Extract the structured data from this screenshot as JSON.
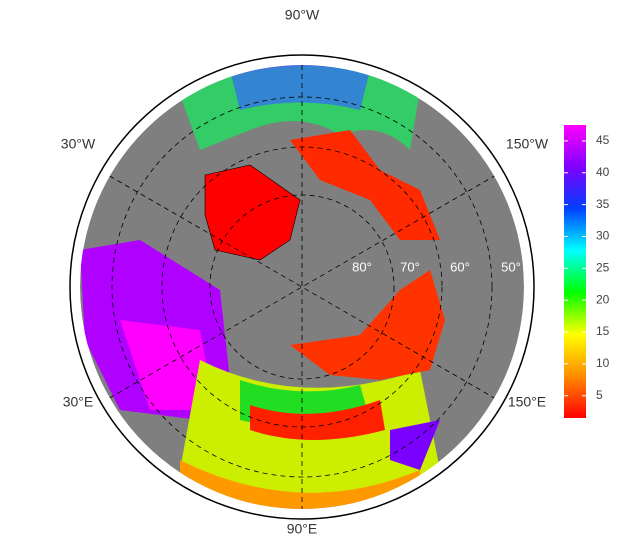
{
  "map": {
    "longitude_labels": {
      "top": "90°W",
      "upper_left": "30°W",
      "upper_right": "150°W",
      "lower_left": "30°E",
      "lower_right": "150°E",
      "bottom": "90°E"
    },
    "latitude_labels": [
      "80°",
      "70°",
      "60°",
      "50°"
    ],
    "colorbar": {
      "lim": [
        1.5,
        47.5
      ],
      "ticks": [
        5,
        10,
        15,
        20,
        25,
        30,
        35,
        40,
        45
      ],
      "colors": [
        "#ff0000",
        "#ff8c00",
        "#ffff00",
        "#00ff00",
        "#00ffff",
        "#0040ff",
        "#8000ff",
        "#ff00ff"
      ]
    }
  }
}
